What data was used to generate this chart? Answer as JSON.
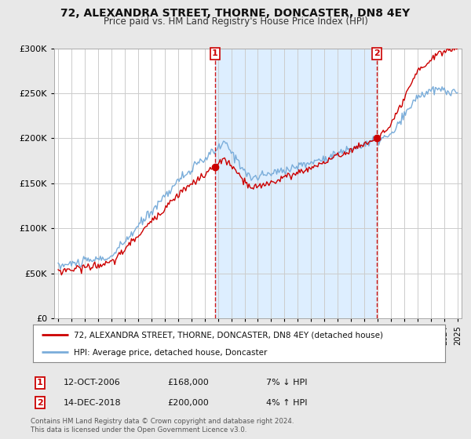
{
  "title": "72, ALEXANDRA STREET, THORNE, DONCASTER, DN8 4EY",
  "subtitle": "Price paid vs. HM Land Registry's House Price Index (HPI)",
  "ylim": [
    0,
    300000
  ],
  "yticks": [
    0,
    50000,
    100000,
    150000,
    200000,
    250000,
    300000
  ],
  "xlim_start": 1994.7,
  "xlim_end": 2025.3,
  "sale1_x": 2006.78,
  "sale1_y": 168000,
  "sale1_label": "1",
  "sale1_date": "12-OCT-2006",
  "sale1_price": "£168,000",
  "sale1_hpi": "7% ↓ HPI",
  "sale2_x": 2018.95,
  "sale2_y": 200000,
  "sale2_label": "2",
  "sale2_date": "14-DEC-2018",
  "sale2_price": "£200,000",
  "sale2_hpi": "4% ↑ HPI",
  "line_red_color": "#cc0000",
  "line_blue_color": "#7aadda",
  "shade_color": "#ddeeff",
  "legend_line1": "72, ALEXANDRA STREET, THORNE, DONCASTER, DN8 4EY (detached house)",
  "legend_line2": "HPI: Average price, detached house, Doncaster",
  "footnote": "Contains HM Land Registry data © Crown copyright and database right 2024.\nThis data is licensed under the Open Government Licence v3.0.",
  "bg_color": "#e8e8e8",
  "plot_bg_color": "#ffffff",
  "grid_color": "#cccccc"
}
